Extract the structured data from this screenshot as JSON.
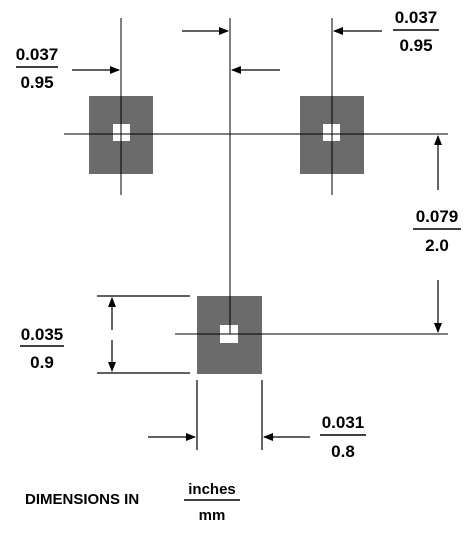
{
  "pads": [
    {
      "name": "pad-top-left"
    },
    {
      "name": "pad-top-right"
    },
    {
      "name": "pad-bottom-center"
    }
  ],
  "dimensions": {
    "pad_offset_left": {
      "inches": "0.037",
      "mm": "0.95"
    },
    "pad_offset_right": {
      "inches": "0.037",
      "mm": "0.95"
    },
    "row_spacing": {
      "inches": "0.079",
      "mm": "2.0"
    },
    "pad_height": {
      "inches": "0.035",
      "mm": "0.9"
    },
    "pad_width": {
      "inches": "0.031",
      "mm": "0.8"
    }
  },
  "legend": {
    "prefix": "DIMENSIONS IN",
    "numerator": "inches",
    "denominator": "mm"
  },
  "colors": {
    "pad": "#6b6b6b",
    "line": "#000000",
    "background": "#ffffff"
  }
}
